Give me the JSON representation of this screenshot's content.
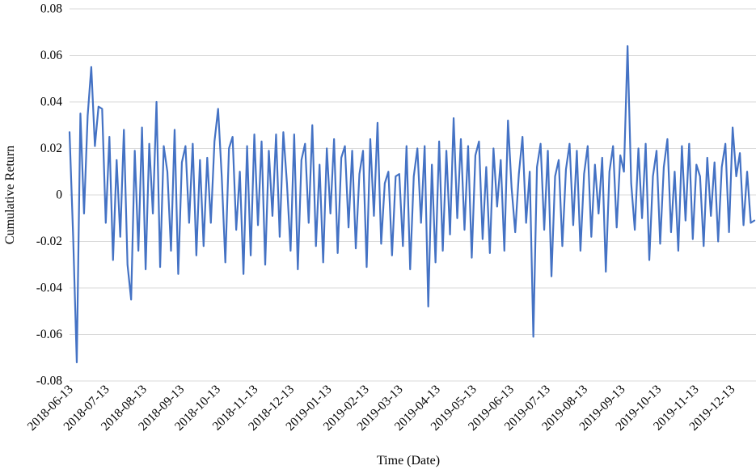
{
  "chart": {
    "y_axis_title": "Cumulative Return",
    "x_axis_title": "Time (Date)"
  },
  "chart_data": {
    "type": "line",
    "title": "",
    "xlabel": "Time (Date)",
    "ylabel": "Cumulative Return",
    "ylim": [
      -0.08,
      0.08
    ],
    "y_tick_step": 0.02,
    "y_tick_labels": [
      "0.08",
      "0.06",
      "0.04",
      "0.02",
      "0",
      "-0.02",
      "-0.04",
      "-0.06",
      "-0.08"
    ],
    "x_tick_labels": [
      "2018-06-13",
      "2018-07-13",
      "2018-08-13",
      "2018-09-13",
      "2018-10-13",
      "2018-11-13",
      "2018-12-13",
      "2019-01-13",
      "2019-02-13",
      "2019-03-13",
      "2019-04-13",
      "2019-05-13",
      "2019-06-13",
      "2019-07-13",
      "2019-08-13",
      "2019-09-13",
      "2019-10-13",
      "2019-11-13",
      "2019-12-13"
    ],
    "grid": true,
    "gridline_color": "#d9d9d9",
    "legend": "none",
    "line_color": "#4472c4",
    "x_start_date": "2018-06-13",
    "x_interval_days": 3,
    "series": [
      {
        "name": "Cumulative Return",
        "values": [
          0.027,
          -0.018,
          -0.072,
          0.035,
          -0.008,
          0.034,
          0.055,
          0.021,
          0.038,
          0.037,
          -0.012,
          0.025,
          -0.028,
          0.015,
          -0.018,
          0.028,
          -0.03,
          -0.045,
          0.019,
          -0.024,
          0.029,
          -0.032,
          0.022,
          -0.008,
          0.04,
          -0.031,
          0.021,
          0.01,
          -0.024,
          0.028,
          -0.034,
          0.014,
          0.021,
          -0.012,
          0.022,
          -0.026,
          0.015,
          -0.022,
          0.016,
          -0.012,
          0.023,
          0.037,
          0.008,
          -0.029,
          0.02,
          0.025,
          -0.015,
          0.01,
          -0.034,
          0.021,
          -0.026,
          0.026,
          -0.013,
          0.023,
          -0.03,
          0.019,
          -0.009,
          0.026,
          -0.018,
          0.027,
          0.005,
          -0.024,
          0.026,
          -0.032,
          0.015,
          0.022,
          -0.012,
          0.03,
          -0.022,
          0.013,
          -0.029,
          0.02,
          -0.008,
          0.024,
          -0.025,
          0.016,
          0.021,
          -0.014,
          0.019,
          -0.023,
          0.009,
          0.019,
          -0.031,
          0.024,
          -0.009,
          0.031,
          -0.021,
          0.005,
          0.01,
          -0.026,
          0.008,
          0.009,
          -0.022,
          0.021,
          -0.032,
          0.008,
          0.02,
          -0.012,
          0.021,
          -0.048,
          0.013,
          -0.029,
          0.023,
          -0.024,
          0.019,
          -0.017,
          0.033,
          -0.01,
          0.024,
          -0.015,
          0.021,
          -0.027,
          0.017,
          0.023,
          -0.019,
          0.012,
          -0.025,
          0.02,
          -0.005,
          0.015,
          -0.024,
          0.032,
          0.003,
          -0.016,
          0.009,
          0.025,
          -0.012,
          0.01,
          -0.061,
          0.012,
          0.022,
          -0.015,
          0.019,
          -0.035,
          0.008,
          0.015,
          -0.022,
          0.011,
          0.022,
          -0.013,
          0.019,
          -0.024,
          0.009,
          0.021,
          -0.018,
          0.013,
          -0.008,
          0.016,
          -0.033,
          0.01,
          0.021,
          -0.014,
          0.017,
          0.01,
          0.064,
          0.005,
          -0.015,
          0.02,
          -0.01,
          0.022,
          -0.028,
          0.008,
          0.019,
          -0.021,
          0.012,
          0.024,
          -0.016,
          0.01,
          -0.024,
          0.021,
          -0.011,
          0.022,
          -0.019,
          0.013,
          0.008,
          -0.022,
          0.016,
          -0.009,
          0.014,
          -0.02,
          0.012,
          0.022,
          -0.016,
          0.029,
          0.008,
          0.018,
          -0.013,
          0.01,
          -0.012,
          -0.011
        ]
      }
    ]
  }
}
